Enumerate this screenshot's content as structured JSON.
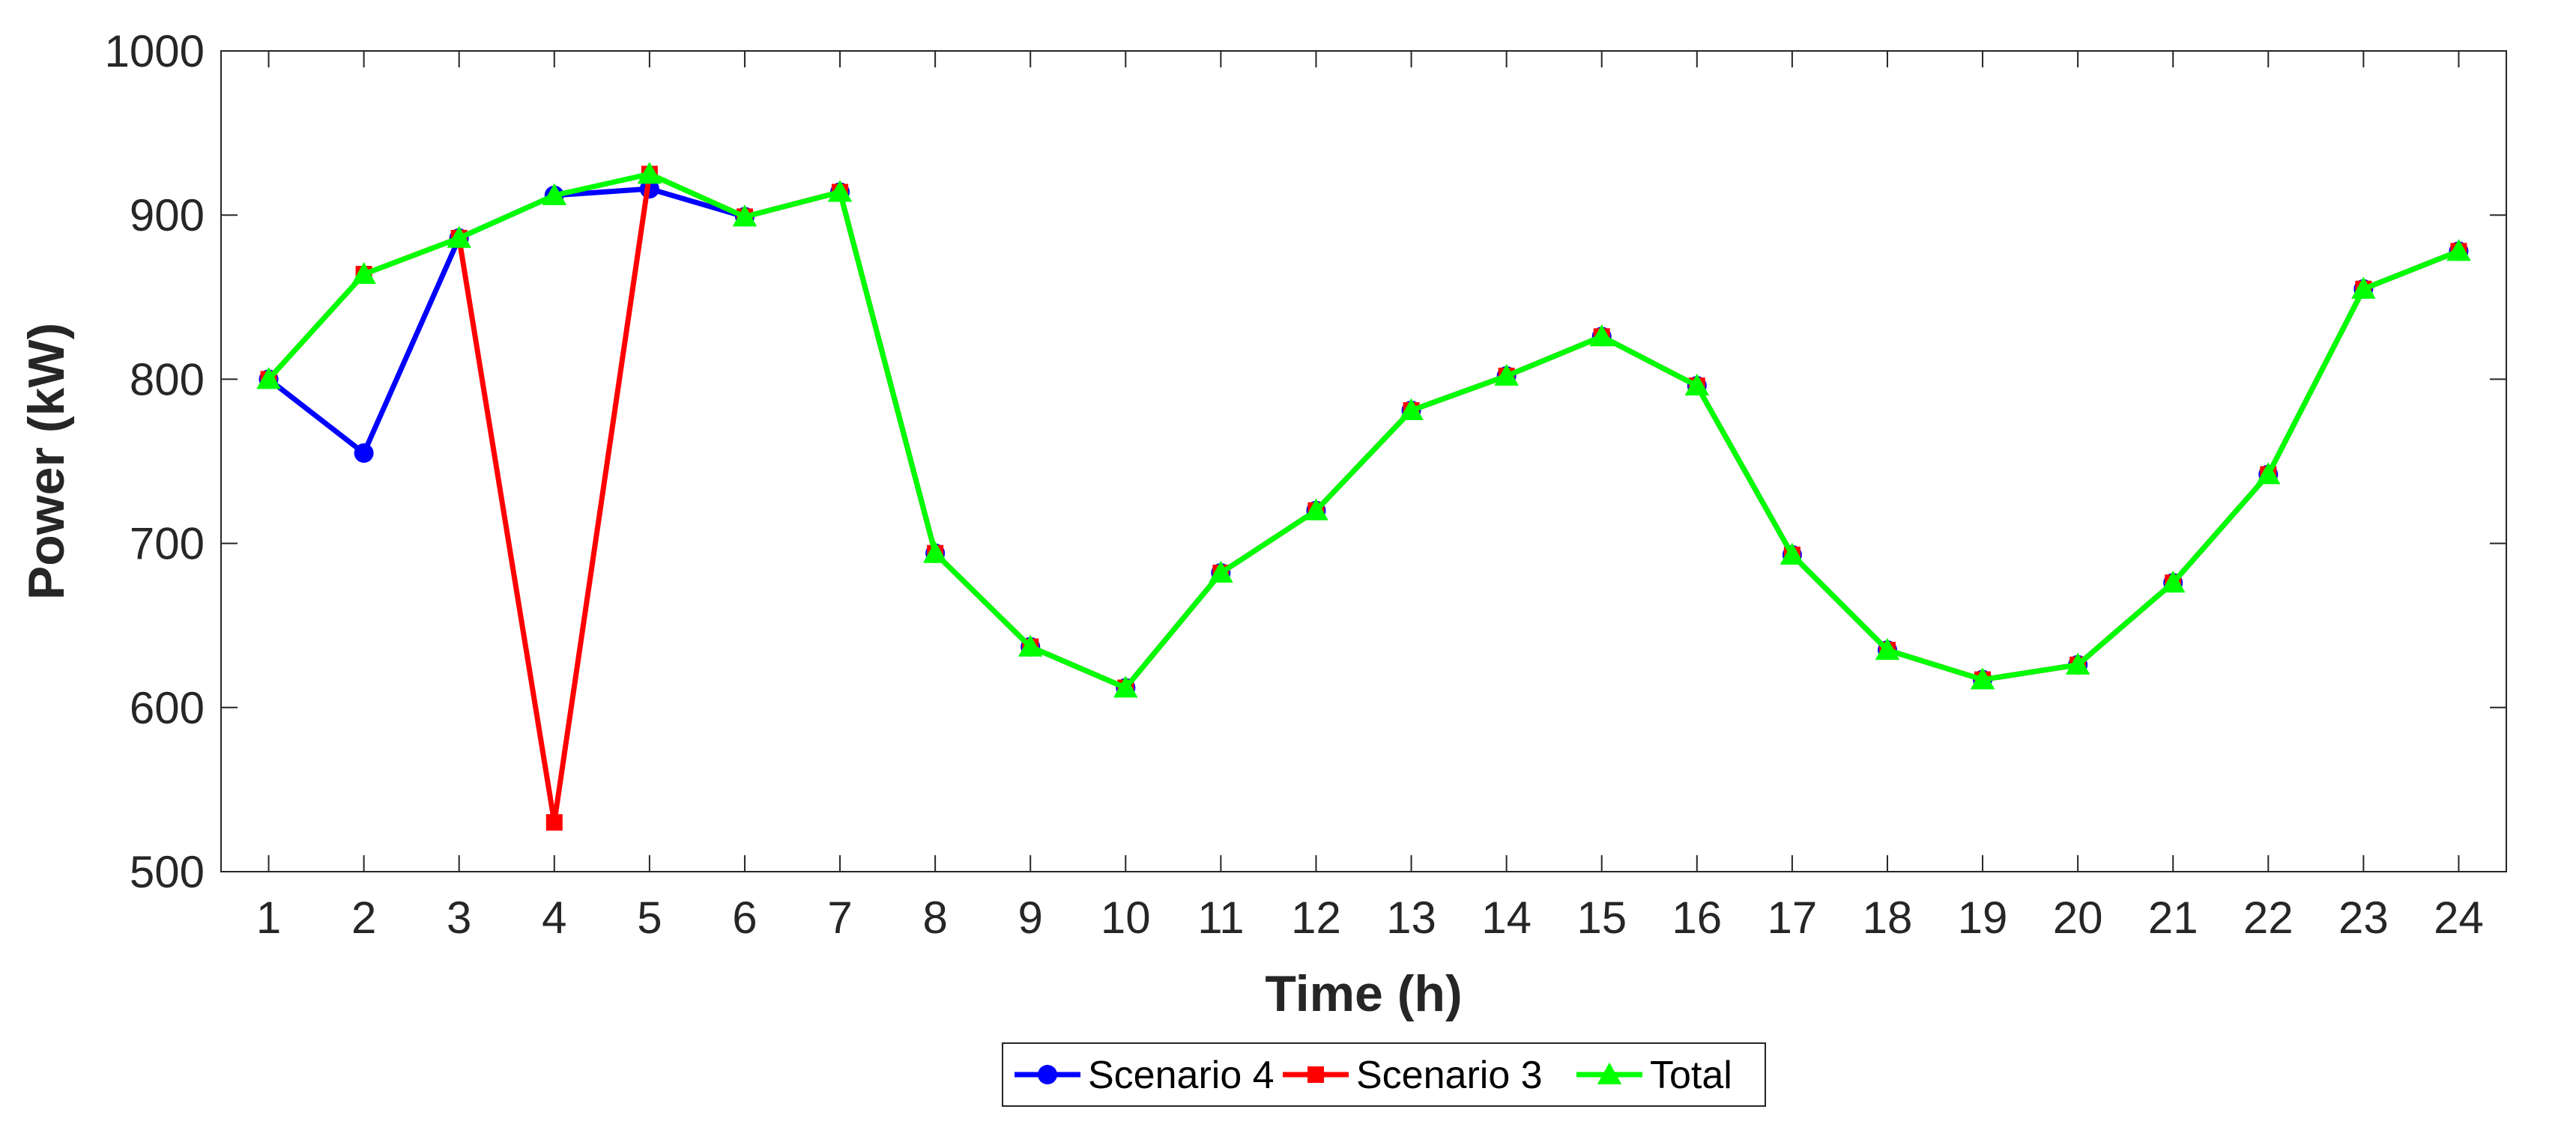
{
  "chart_data": {
    "type": "line",
    "xlabel": "Time (h)",
    "ylabel": "Power (kW)",
    "ylim": [
      500,
      1000
    ],
    "y_ticks": [
      500,
      600,
      700,
      800,
      900,
      1000
    ],
    "x": [
      1,
      2,
      3,
      4,
      5,
      6,
      7,
      8,
      9,
      10,
      11,
      12,
      13,
      14,
      15,
      16,
      17,
      18,
      19,
      20,
      21,
      22,
      23,
      24
    ],
    "x_ticks": [
      1,
      2,
      3,
      4,
      5,
      6,
      7,
      8,
      9,
      10,
      11,
      12,
      13,
      14,
      15,
      16,
      17,
      18,
      19,
      20,
      21,
      22,
      23,
      24
    ],
    "grid": false,
    "legend_position": "bottom-center",
    "series": [
      {
        "name": "Scenario 4",
        "color": "#0000ff",
        "marker": "circle",
        "values": [
          800,
          755,
          886,
          912,
          916,
          899,
          914,
          694,
          637,
          612,
          682,
          720,
          781,
          802,
          826,
          796,
          693,
          635,
          617,
          626,
          676,
          742,
          855,
          878
        ]
      },
      {
        "name": "Scenario 3",
        "color": "#ff0000",
        "marker": "square",
        "values": [
          800,
          864,
          886,
          530,
          925,
          899,
          914,
          694,
          637,
          612,
          682,
          720,
          781,
          802,
          826,
          796,
          693,
          635,
          617,
          626,
          676,
          742,
          855,
          878
        ]
      },
      {
        "name": "Total",
        "color": "#00ff00",
        "marker": "triangle",
        "values": [
          800,
          864,
          886,
          912,
          925,
          899,
          914,
          694,
          637,
          612,
          682,
          720,
          781,
          802,
          826,
          796,
          693,
          635,
          617,
          626,
          676,
          742,
          855,
          878
        ]
      }
    ]
  }
}
